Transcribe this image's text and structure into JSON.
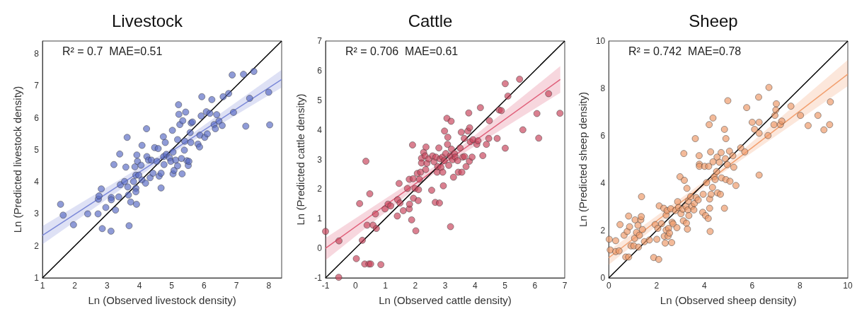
{
  "chart_data": [
    {
      "type": "scatter",
      "title": "Livestock",
      "xlabel": "Ln (Observed livestock density)",
      "ylabel": "Ln (Predicted livestock density)",
      "xlim": [
        1,
        8.4
      ],
      "ylim": [
        1,
        8.4
      ],
      "xticks": [
        1,
        2,
        3,
        4,
        5,
        6,
        7,
        8
      ],
      "yticks": [
        1,
        2,
        3,
        4,
        5,
        6,
        7,
        8
      ],
      "annotations": [
        "R² = 0.7  MAE=0.51"
      ],
      "series": [
        {
          "marker": "circle",
          "color": "#5a6bc4",
          "x": [
            1.56,
            1.64,
            1.96,
            2.4,
            2.72,
            2.73,
            2.75,
            2.82,
            2.85,
            2.96,
            3.12,
            3.13,
            3.13,
            3.21,
            3.26,
            3.36,
            3.39,
            3.41,
            3.54,
            3.58,
            3.62,
            3.64,
            3.68,
            3.66,
            3.73,
            3.82,
            3.86,
            3.89,
            3.89,
            3.89,
            3.91,
            3.92,
            3.94,
            3.98,
            4.05,
            4.08,
            4.08,
            4.19,
            4.22,
            4.23,
            4.28,
            4.33,
            4.37,
            4.42,
            4.47,
            4.54,
            4.58,
            4.61,
            4.67,
            4.67,
            4.74,
            4.75,
            4.76,
            4.8,
            4.83,
            4.93,
            4.97,
            5.02,
            5.04,
            5.04,
            5.07,
            5.12,
            5.18,
            5.18,
            5.21,
            5.22,
            5.25,
            5.3,
            5.32,
            5.34,
            5.39,
            5.4,
            5.43,
            5.47,
            5.51,
            5.53,
            5.57,
            5.59,
            5.6,
            5.64,
            5.81,
            5.86,
            5.87,
            5.91,
            5.93,
            6.02,
            6.07,
            6.1,
            6.18,
            6.24,
            6.31,
            6.35,
            6.39,
            6.46,
            6.56,
            6.59,
            6.76,
            6.87,
            6.91,
            7.22,
            7.29,
            7.41,
            7.54,
            8.0,
            8.03
          ],
          "values": [
            3.3,
            2.96,
            2.66,
            3.0,
            3.0,
            3.46,
            3.56,
            3.78,
            2.54,
            3.2,
            2.46,
            3.51,
            3.44,
            4.54,
            3.12,
            3.53,
            4.87,
            3.91,
            4.01,
            4.46,
            5.39,
            3.84,
            2.63,
            3.59,
            3.37,
            4.01,
            4.47,
            4.21,
            3.8,
            3.69,
            3.3,
            4.84,
            4.64,
            4.21,
            4.52,
            5.14,
            4.06,
            3.96,
            5.66,
            4.79,
            4.68,
            4.13,
            4.68,
            4.27,
            5.07,
            4.64,
            5.04,
            4.18,
            4.27,
            3.81,
            5.41,
            4.79,
            4.54,
            5.23,
            4.86,
            4.75,
            4.64,
            5.61,
            4.93,
            4.25,
            4.36,
            4.68,
            4.5,
            5.32,
            6.41,
            6.11,
            5.79,
            4.73,
            4.25,
            5.91,
            4.99,
            5.27,
            6.18,
            4.66,
            4.51,
            4.64,
            5.54,
            5.23,
            5.84,
            5.87,
            5.18,
            5.09,
            5.46,
            6.06,
            6.66,
            5.39,
            6.19,
            5.5,
            6.14,
            6.57,
            5.79,
            5.66,
            6.1,
            5.9,
            5.76,
            6.66,
            6.76,
            7.34,
            6.17,
            7.36,
            5.74,
            6.61,
            7.45,
            6.8,
            5.78
          ]
        },
        {
          "type": "line",
          "color": "#7b88d8",
          "x": [
            1,
            5,
            8.4
          ],
          "values": [
            2.33,
            4.96,
            7.2
          ],
          "lower": [
            2.05,
            4.88,
            6.95
          ],
          "upper": [
            2.62,
            5.05,
            7.5
          ]
        },
        {
          "type": "line",
          "color": "#000000",
          "x": [
            1,
            8.4
          ],
          "values": [
            1,
            8.4
          ]
        }
      ]
    },
    {
      "type": "scatter",
      "title": "Cattle",
      "xlabel": "Ln (Observed cattle density)",
      "ylabel": "Ln (Predicted cattle density)",
      "xlim": [
        -1,
        7
      ],
      "ylim": [
        -1,
        7
      ],
      "xticks": [
        -1,
        0,
        1,
        2,
        3,
        4,
        5,
        6,
        7
      ],
      "yticks": [
        -1,
        0,
        1,
        2,
        3,
        4,
        5,
        6,
        7
      ],
      "annotations": [
        "R² = 0.706  MAE=0.61"
      ],
      "series": [
        {
          "marker": "circle",
          "color": "#c8445c",
          "x": [
            -1.0,
            -0.56,
            -0.55,
            0.03,
            0.14,
            0.23,
            0.31,
            0.35,
            0.39,
            0.45,
            0.51,
            0.48,
            0.59,
            0.67,
            0.7,
            0.85,
            0.99,
            1.09,
            1.18,
            1.4,
            1.41,
            1.46,
            1.49,
            1.6,
            1.74,
            1.8,
            1.8,
            1.81,
            1.88,
            1.91,
            1.93,
            1.94,
            1.99,
            2.02,
            2.07,
            2.1,
            2.11,
            2.14,
            2.18,
            2.21,
            2.21,
            2.28,
            2.33,
            2.35,
            2.36,
            2.39,
            2.45,
            2.55,
            2.58,
            2.63,
            2.67,
            2.69,
            2.73,
            2.75,
            2.79,
            2.81,
            2.83,
            2.86,
            2.91,
            2.92,
            2.94,
            2.97,
            2.98,
            3.02,
            3.06,
            3.08,
            3.09,
            3.12,
            3.17,
            3.18,
            3.2,
            3.21,
            3.25,
            3.28,
            3.31,
            3.34,
            3.42,
            3.44,
            3.5,
            3.54,
            3.56,
            3.59,
            3.64,
            3.65,
            3.7,
            3.76,
            3.79,
            3.81,
            3.82,
            3.84,
            3.9,
            3.93,
            4.06,
            4.1,
            4.18,
            4.26,
            4.38,
            4.46,
            4.48,
            4.74,
            4.81,
            4.88,
            5.01,
            5.01,
            5.1,
            5.49,
            5.6,
            6.07,
            6.13,
            6.46,
            6.84
          ],
          "values": [
            0.57,
            -0.98,
            0.25,
            -0.35,
            1.51,
            0.27,
            -0.53,
            2.94,
            0.78,
            -0.53,
            -0.53,
            1.84,
            0.78,
            1.16,
            0.67,
            -0.55,
            1.33,
            1.49,
            1.43,
            1.09,
            1.64,
            2.19,
            1.53,
            1.27,
            2.02,
            2.33,
            1.33,
            1.49,
            0.96,
            3.49,
            2.35,
            1.69,
            2.02,
            0.59,
            2.53,
            1.61,
            1.98,
            2.33,
            2.57,
            3.04,
            2.88,
            3.24,
            3.12,
            2.66,
            3.42,
            2.87,
            3.02,
            1.96,
            3.12,
            2.92,
            1.55,
            3.08,
            2.57,
            2.76,
            3.39,
            1.53,
            3.02,
            2.73,
            3.08,
            2.57,
            2.11,
            2.96,
            3.96,
            3.2,
            4.39,
            3.51,
            3.75,
            2.8,
            3.12,
            0.73,
            4.29,
            3.35,
            2.99,
            2.4,
            3.2,
            3.08,
            2.96,
            2.57,
            3.39,
            3.92,
            2.57,
            3.08,
            3.71,
            3.1,
            2.76,
            3.96,
            4.57,
            2.94,
            4.07,
            3.6,
            3.08,
            3.67,
            3.51,
            3.63,
            4.75,
            3.13,
            3.51,
            3.71,
            4.31,
            3.71,
            4.67,
            4.65,
            5.56,
            3.38,
            5.14,
            5.71,
            4.0,
            4.55,
            3.72,
            5.22,
            4.56
          ]
        },
        {
          "type": "line",
          "color": "#e0607a",
          "x": [
            -1,
            3,
            6.85
          ],
          "values": [
            0.0,
            2.9,
            5.7
          ],
          "lower": [
            -0.4,
            2.82,
            5.25
          ],
          "upper": [
            0.35,
            3.0,
            6.15
          ]
        },
        {
          "type": "line",
          "color": "#000000",
          "x": [
            -1,
            7
          ],
          "values": [
            -1,
            7
          ]
        }
      ]
    },
    {
      "type": "scatter",
      "title": "Sheep",
      "xlabel": "Ln (Observed sheep density)",
      "ylabel": "Ln (Predicted sheep density)",
      "xlim": [
        0,
        10
      ],
      "ylim": [
        0,
        10
      ],
      "xticks": [
        0,
        2,
        4,
        6,
        8,
        10
      ],
      "yticks": [
        0,
        2,
        4,
        6,
        8,
        10
      ],
      "annotations": [
        "R² = 0.742  MAE=0.78"
      ],
      "series": [
        {
          "marker": "circle",
          "color": "#ee9a68",
          "x": [
            0.02,
            0.06,
            0.29,
            0.29,
            0.43,
            0.47,
            0.64,
            0.71,
            0.83,
            0.77,
            0.83,
            0.87,
            0.93,
            1.05,
            1.08,
            1.1,
            1.16,
            1.22,
            1.24,
            1.28,
            1.34,
            1.36,
            1.37,
            1.41,
            1.49,
            1.7,
            1.88,
            1.94,
            2.01,
            2.09,
            2.05,
            2.11,
            2.21,
            2.3,
            2.32,
            2.36,
            2.4,
            2.4,
            2.44,
            2.48,
            2.5,
            2.54,
            2.59,
            2.63,
            2.65,
            2.69,
            2.79,
            2.85,
            2.88,
            2.92,
            2.98,
            3.02,
            3.1,
            3.12,
            3.14,
            3.16,
            3.23,
            3.25,
            3.27,
            3.29,
            3.31,
            3.33,
            3.35,
            3.43,
            3.48,
            3.56,
            3.58,
            3.62,
            3.66,
            3.74,
            3.78,
            3.79,
            3.79,
            3.93,
            3.95,
            4.01,
            4.05,
            4.09,
            4.16,
            4.18,
            4.2,
            4.22,
            4.22,
            4.24,
            4.26,
            4.28,
            4.34,
            4.36,
            4.36,
            4.41,
            4.45,
            4.51,
            4.53,
            4.55,
            4.63,
            4.67,
            4.7,
            4.72,
            4.84,
            4.84,
            4.88,
            4.9,
            4.9,
            4.98,
            4.96,
            5.05,
            5.07,
            5.19,
            5.23,
            5.32,
            5.52,
            5.69,
            5.77,
            6.0,
            6.1,
            6.27,
            6.29,
            6.29,
            6.29,
            6.66,
            6.7,
            6.91,
            6.95,
            6.99,
            7.01,
            7.18,
            7.24,
            7.62,
            8.02,
            8.34,
            8.75,
            9.0,
            9.24,
            9.27
          ],
          "values": [
            1.63,
            1.18,
            1.57,
            1.11,
            1.14,
            2.25,
            1.8,
            0.88,
            0.88,
            1.96,
            2.61,
            2.16,
            1.35,
            1.35,
            1.67,
            2.45,
            1.92,
            2.22,
            1.3,
            1.8,
            2.45,
            2.59,
            3.43,
            2.04,
            1.53,
            1.6,
            0.86,
            2.25,
            1.63,
            0.78,
            2.09,
            3.04,
            2.29,
            2.94,
            1.76,
            1.47,
            2.02,
            2.65,
            2.84,
            1.76,
            2.09,
            1.89,
            2.92,
            1.49,
            2.35,
            2.28,
            2.84,
            2.12,
            3.22,
            2.97,
            4.27,
            2.71,
            2.9,
            2.41,
            5.25,
            4.12,
            3.02,
            2.31,
            3.78,
            2.06,
            2.87,
            3.24,
            2.63,
            3.43,
            3.02,
            2.87,
            3.14,
            5.88,
            3.39,
            3.29,
            5.16,
            4.8,
            4.71,
            2.77,
            3.53,
            4.71,
            2.63,
            4.02,
            2.51,
            4.71,
            6.47,
            3.33,
            2.94,
            1.96,
            5.32,
            3.53,
            3.82,
            6.75,
            4.9,
            4.27,
            4.15,
            4.49,
            5.1,
            3.59,
            4.88,
            3.53,
            5.29,
            4.22,
            6.27,
            2.94,
            5.03,
            5.88,
            4.15,
            7.48,
            4.78,
            5.35,
            4.08,
            5.16,
            4.67,
            3.9,
            5.49,
            5.32,
            7.19,
            6.57,
            6.27,
            7.63,
            6.11,
            6.57,
            4.34,
            6.01,
            8.04,
            6.47,
            6.86,
            7.09,
            7.35,
            6.47,
            6.62,
            7.25,
            6.86,
            6.43,
            6.86,
            6.25,
            6.47,
            7.43
          ]
        },
        {
          "type": "line",
          "color": "#f2a070",
          "x": [
            0,
            4.5,
            10
          ],
          "values": [
            0.85,
            4.34,
            8.6
          ],
          "lower": [
            0.55,
            4.25,
            8.1
          ],
          "upper": [
            1.15,
            4.45,
            9.2
          ]
        },
        {
          "type": "line",
          "color": "#000000",
          "x": [
            0,
            10
          ],
          "values": [
            0,
            10
          ]
        }
      ]
    }
  ]
}
